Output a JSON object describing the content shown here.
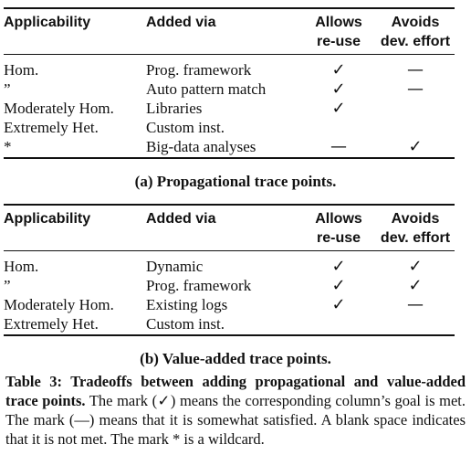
{
  "headers": {
    "applicability": "Applicability",
    "added_via": "Added via",
    "allows_line1": "Allows",
    "allows_line2": "re-use",
    "avoids_line1": "Avoids",
    "avoids_line2": "dev. effort"
  },
  "table_a": {
    "caption": "(a) Propagational trace points.",
    "rows": [
      {
        "applicability": "Hom.",
        "added_via": "Prog. framework",
        "allows": "✓",
        "avoids": "—"
      },
      {
        "applicability": "”",
        "added_via": "Auto pattern match",
        "allows": "✓",
        "avoids": "—"
      },
      {
        "applicability": "Moderately Hom.",
        "added_via": "Libraries",
        "allows": "✓",
        "avoids": ""
      },
      {
        "applicability": "Extremely Het.",
        "added_via": "Custom inst.",
        "allows": "",
        "avoids": ""
      },
      {
        "applicability": "*",
        "added_via": "Big-data analyses",
        "allows": "—",
        "avoids": "✓"
      }
    ]
  },
  "table_b": {
    "caption": "(b) Value-added trace points.",
    "rows": [
      {
        "applicability": "Hom.",
        "added_via": "Dynamic",
        "allows": "✓",
        "avoids": "✓"
      },
      {
        "applicability": "”",
        "added_via": "Prog. framework",
        "allows": "✓",
        "avoids": "✓"
      },
      {
        "applicability": "Moderately Hom.",
        "added_via": "Existing logs",
        "allows": "✓",
        "avoids": "—"
      },
      {
        "applicability": "Extremely Het.",
        "added_via": "Custom inst.",
        "allows": "",
        "avoids": ""
      }
    ]
  },
  "table_caption": {
    "lead": "Table 3: Tradeoffs between adding propagational and value-added trace points.",
    "body": " The mark (✓) means the corresponding column’s goal is met. The mark (—) means that it is somewhat satisfied. A blank space indicates that it is not met. The mark * is a wildcard."
  }
}
